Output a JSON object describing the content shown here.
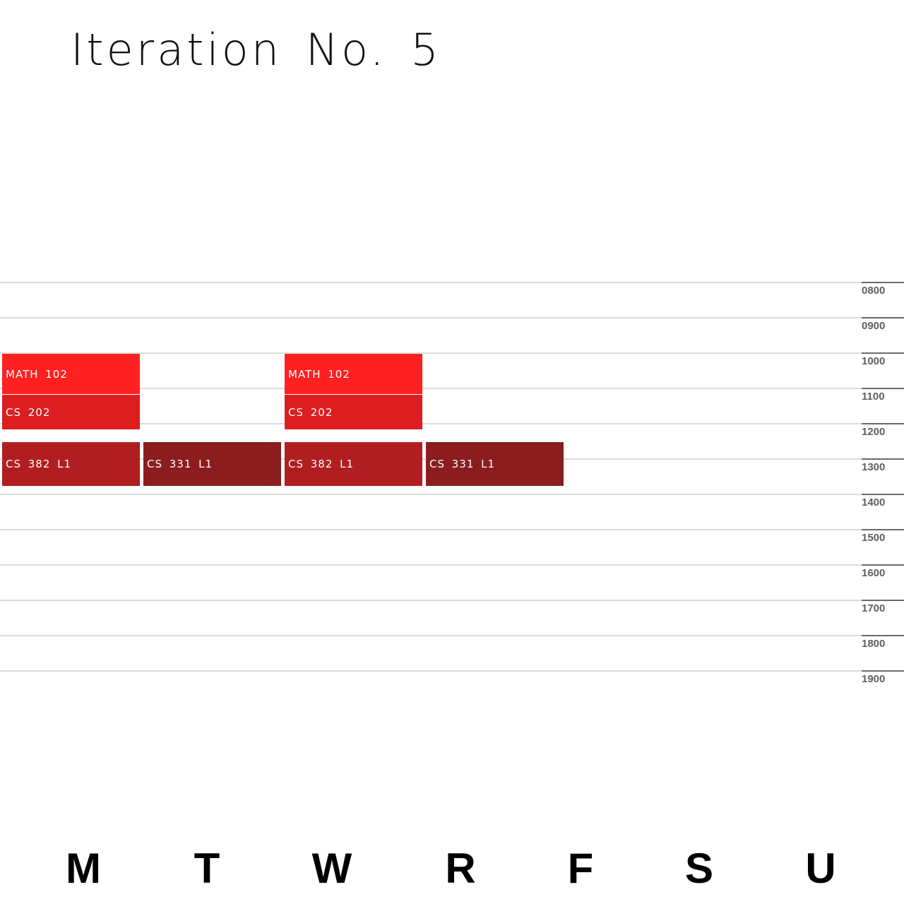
{
  "title": "Iteration No. 5",
  "times": [
    "0800",
    "0900",
    "1000",
    "1100",
    "1200",
    "1300",
    "1400",
    "1500",
    "1600",
    "1700",
    "1800",
    "1900"
  ],
  "days": [
    "M",
    "T",
    "W",
    "R",
    "F",
    "S",
    "U"
  ],
  "colors": {
    "math_102": "#ff2020",
    "cs_202": "#dd1d20",
    "cs_382_l1": "#b11e21",
    "cs_331_l1": "#8b1d1f"
  },
  "events": [
    {
      "label": "MATH 102",
      "day": "M",
      "start": "1000",
      "end": "1110",
      "color": "#ff2020"
    },
    {
      "label": "CS 202",
      "day": "M",
      "start": "1110",
      "end": "1210",
      "color": "#dd1d20"
    },
    {
      "label": "CS 382 L1",
      "day": "M",
      "start": "1230",
      "end": "1345",
      "color": "#b11e21"
    },
    {
      "label": "CS 331 L1",
      "day": "T",
      "start": "1230",
      "end": "1345",
      "color": "#8b1d1f"
    },
    {
      "label": "MATH 102",
      "day": "W",
      "start": "1000",
      "end": "1110",
      "color": "#ff2020"
    },
    {
      "label": "CS 202",
      "day": "W",
      "start": "1110",
      "end": "1210",
      "color": "#dd1d20"
    },
    {
      "label": "CS 382 L1",
      "day": "W",
      "start": "1230",
      "end": "1345",
      "color": "#b11e21"
    },
    {
      "label": "CS 331 L1",
      "day": "R",
      "start": "1230",
      "end": "1345",
      "color": "#8b1d1f"
    }
  ]
}
